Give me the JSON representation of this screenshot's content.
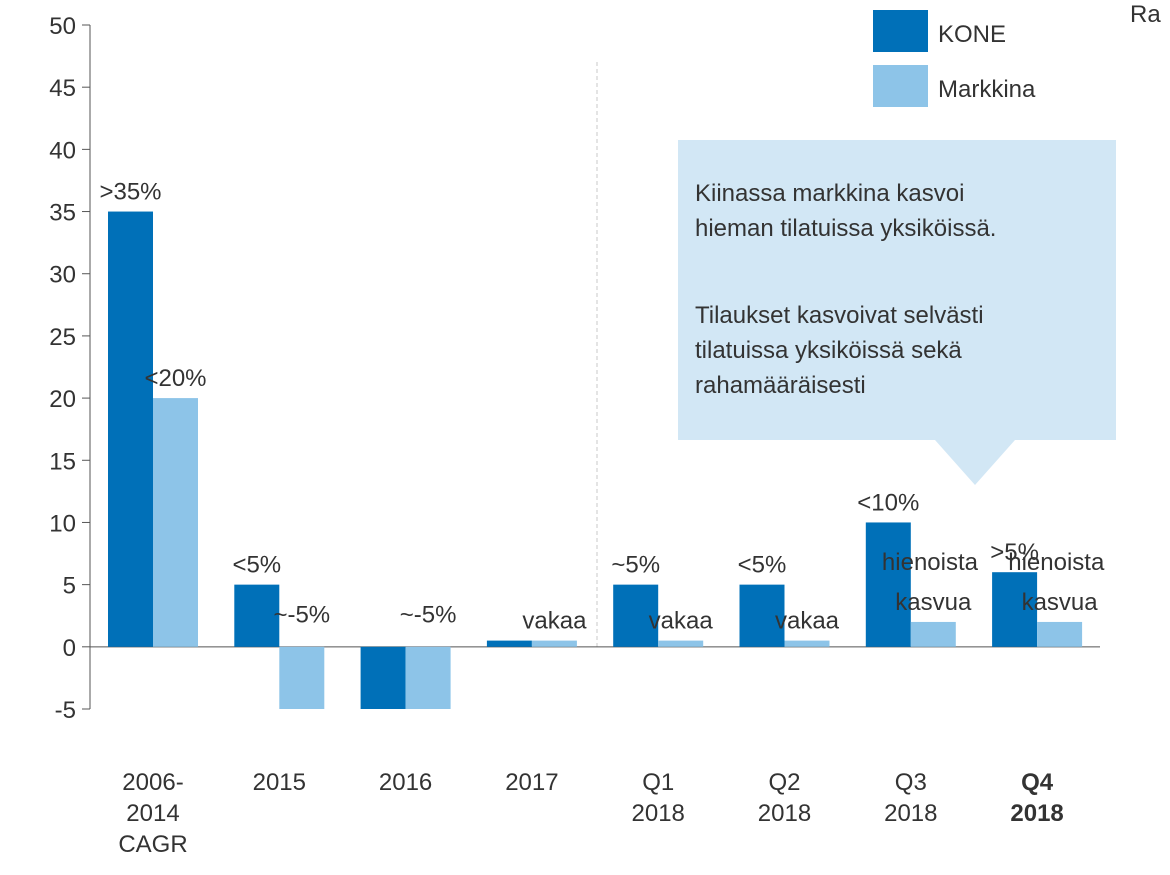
{
  "chart_data": {
    "type": "bar",
    "categories": [
      "2006-\n2014\nCAGR",
      "2015",
      "2016",
      "2017",
      "Q1\n2018",
      "Q2\n2018",
      "Q3\n2018",
      "Q4\n2018"
    ],
    "bold_categories": [
      7
    ],
    "series": [
      {
        "name": "KONE",
        "color": "#0070b8",
        "values": [
          35,
          5,
          -5,
          0.5,
          5,
          5,
          10,
          6
        ],
        "value_labels": [
          ">35%",
          "<5%",
          null,
          null,
          "~5%",
          "<5%",
          "<10%",
          ">5%"
        ]
      },
      {
        "name": "Markkina",
        "color": "#8dc4e8",
        "values": [
          20,
          -5,
          -5,
          0.5,
          0.5,
          0.5,
          2,
          2
        ],
        "value_labels": [
          "<20%",
          "~-5%",
          "~-5%",
          "vakaa",
          "vakaa",
          "vakaa",
          "hienoista kasvua",
          "hienoista kasvua"
        ]
      }
    ],
    "ylim": [
      -5,
      50
    ],
    "yticks": [
      -5,
      0,
      5,
      10,
      15,
      20,
      25,
      30,
      35,
      40,
      45,
      50
    ],
    "annotation": [
      "Kiinassa markkina kasvoi\nhieman tilatuissa yksiköissä.",
      "Tilaukset kasvoivat selvästi\ntilatuissa yksiköissä sekä\nrahamääräisesti"
    ],
    "corner_text": "Ra",
    "legend": "top-right"
  }
}
